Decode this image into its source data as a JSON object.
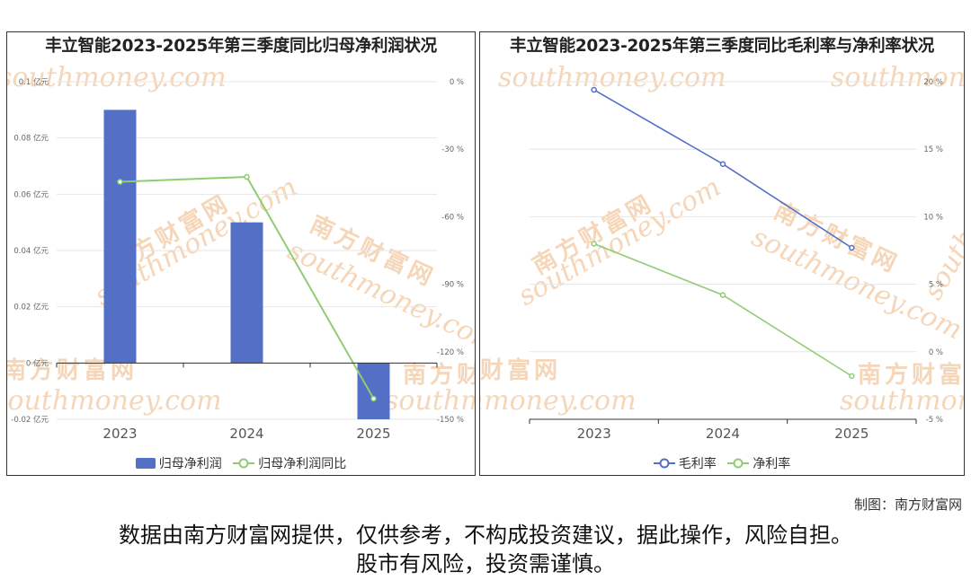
{
  "colors": {
    "bar": "#5470c6",
    "green_line": "#91cc75",
    "blue_line": "#5470c6",
    "watermark": "#f5d6b8"
  },
  "watermark": {
    "cn": "南方财富网",
    "en": "southmoney.com"
  },
  "credit": "制图：南方财富网",
  "disclaimer": {
    "line1": "数据由南方财富网提供，仅供参考，不构成投资建议，据此操作，风险自担。",
    "line2": "股市有风险，投资需谨慎。"
  },
  "chart_data": [
    {
      "type": "bar",
      "title": "丰立智能2023-2025年第三季度同比归母净利润状况",
      "categories": [
        "2023",
        "2024",
        "2025"
      ],
      "series": [
        {
          "name": "归母净利润",
          "type": "bar",
          "axis": "left",
          "values": [
            0.09,
            0.05,
            -0.02
          ]
        },
        {
          "name": "归母净利润同比",
          "type": "line",
          "axis": "right",
          "values": [
            -44.5,
            -42.3,
            -140.8
          ]
        }
      ],
      "y_left": {
        "ticks": [
          "0.1 亿元",
          "0.08 亿元",
          "0.06 亿元",
          "0.04 亿元",
          "0.02 亿元",
          "0 亿元",
          "-0.02 亿元"
        ],
        "ylim": [
          -0.02,
          0.1
        ]
      },
      "y_right": {
        "ticks": [
          "0 %",
          "-30 %",
          "-60 %",
          "-90 %",
          "-120 %",
          "-150 %"
        ],
        "ylim": [
          -150,
          0
        ]
      },
      "grid": true,
      "legend": "bottom"
    },
    {
      "type": "line",
      "title": "丰立智能2023-2025年第三季度同比毛利率与净利率状况",
      "categories": [
        "2023",
        "2024",
        "2025"
      ],
      "series": [
        {
          "name": "毛利率",
          "values": [
            19.4,
            13.9,
            7.7
          ]
        },
        {
          "name": "净利率",
          "values": [
            8.0,
            4.2,
            -1.8
          ]
        }
      ],
      "y_right": {
        "ticks": [
          "20 %",
          "15 %",
          "10 %",
          "5 %",
          "0 %",
          "-5 %"
        ],
        "ylim": [
          -5,
          20
        ]
      },
      "grid": true,
      "legend": "bottom"
    }
  ]
}
